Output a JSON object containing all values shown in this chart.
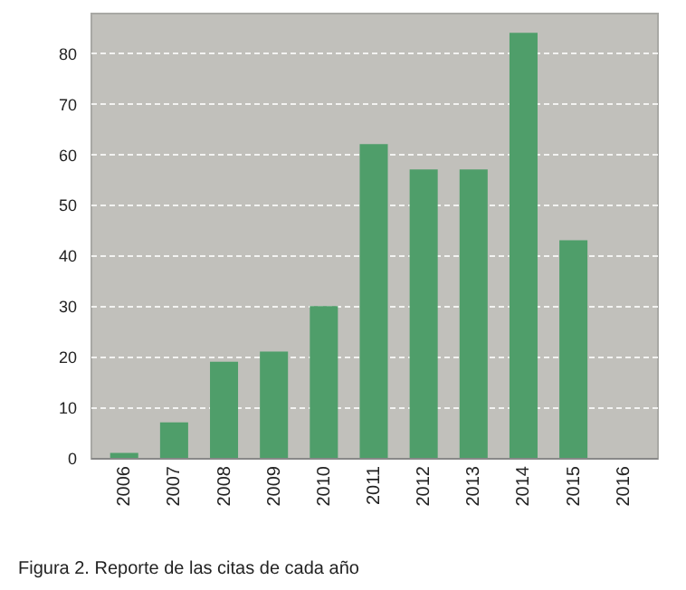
{
  "chart_data": {
    "type": "bar",
    "categories": [
      "2006",
      "2007",
      "2008",
      "2009",
      "2010",
      "2011",
      "2012",
      "2013",
      "2014",
      "2015",
      "2016"
    ],
    "values": [
      1,
      7,
      19,
      21,
      30,
      62,
      57,
      57,
      84,
      43,
      0
    ],
    "color": "#4f9e6a",
    "ylim": [
      0,
      88
    ],
    "yticks": [
      0,
      10,
      20,
      30,
      40,
      50,
      60,
      70,
      80
    ],
    "grid": "y",
    "annotations": [
      "Figura 2. Reporte de las citas de cada año"
    ]
  }
}
